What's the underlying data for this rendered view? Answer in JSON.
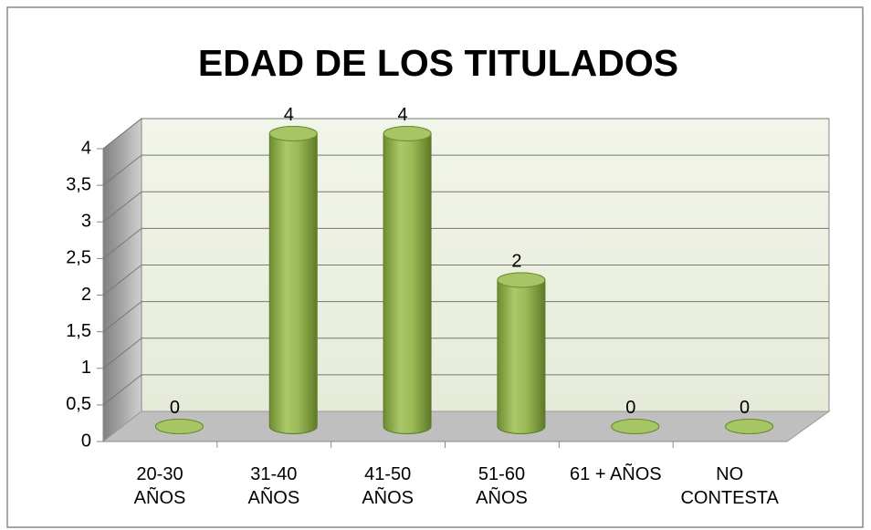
{
  "chart_data": {
    "type": "bar3d",
    "title": "EDAD DE LOS TITULADOS",
    "categories": [
      "20-30\nAÑOS",
      "31-40\nAÑOS",
      "41-50\nAÑOS",
      "51-60\nAÑOS",
      "61 + AÑOS",
      "NO\nCONTESTA"
    ],
    "values": [
      0,
      4,
      4,
      2,
      0,
      0
    ],
    "color": "#9bbb59",
    "ylim": [
      0,
      4
    ],
    "yticks": [
      0,
      {
        "value": 0.5,
        "label": "0,5"
      },
      1,
      {
        "value": 1.5,
        "label": "1,5"
      },
      2,
      {
        "value": 2.5,
        "label": "2,5"
      },
      3,
      {
        "value": 3.5,
        "label": "3,5"
      },
      4
    ],
    "grid": true
  }
}
